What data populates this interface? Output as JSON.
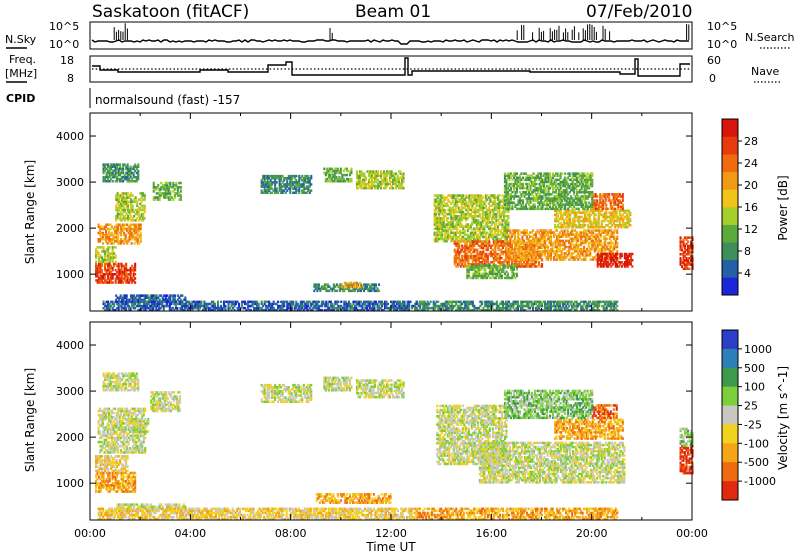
{
  "header": {
    "station": "Saskatoon (fitACF)",
    "beam": "Beam 01",
    "date": "07/Feb/2010"
  },
  "strip": {
    "nsky_label": "N.Sky",
    "nsearch_label": "N.Search",
    "nsky_ticks": [
      "10^5",
      "10^0"
    ],
    "nsearch_ticks": [
      "10^5",
      "10^0"
    ],
    "freq_label": "Freq.",
    "freq_unit": "[MHz]",
    "freq_ticks": [
      "18",
      "8"
    ],
    "nave_label": "Nave",
    "nave_ticks": [
      "60",
      "0"
    ],
    "cpid_label": "CPID",
    "cpid_value": "normalsound (fast) -157"
  },
  "chart_data": [
    {
      "type": "heatmap",
      "name": "power",
      "ylabel": "Slant Range [km]",
      "xlabel": "Time UT",
      "x_ticks": [
        "00:00",
        "04:00",
        "08:00",
        "12:00",
        "16:00",
        "20:00",
        "00:00"
      ],
      "y_ticks": [
        "1000",
        "2000",
        "3000",
        "4000"
      ],
      "ylim": [
        200,
        4500
      ],
      "xlim_hours": [
        0,
        24
      ],
      "colorbar_label": "Power [dB]",
      "colorbar_ticks": [
        "4",
        "8",
        "12",
        "16",
        "20",
        "24",
        "28"
      ],
      "colors": [
        "#1b26d9",
        "#2460a8",
        "#3e8f5c",
        "#5aaa3c",
        "#a6cf2a",
        "#f0c419",
        "#f29a14",
        "#ef6a10",
        "#e83a0c",
        "#d9140b"
      ],
      "regions": [
        {
          "t": [
            0.2,
            1.8
          ],
          "r": [
            800,
            1250
          ],
          "level": 8
        },
        {
          "t": [
            0.2,
            1.0
          ],
          "r": [
            1250,
            1600
          ],
          "level": 4
        },
        {
          "t": [
            0.3,
            2.0
          ],
          "r": [
            1650,
            2100
          ],
          "level": 6
        },
        {
          "t": [
            1.0,
            2.2
          ],
          "r": [
            2150,
            2750
          ],
          "level": 4
        },
        {
          "t": [
            0.5,
            1.9
          ],
          "r": [
            3000,
            3400
          ],
          "level": 2
        },
        {
          "t": [
            2.5,
            3.6
          ],
          "r": [
            2600,
            3000
          ],
          "level": 3
        },
        {
          "t": [
            1.0,
            3.8
          ],
          "r": [
            380,
            560
          ],
          "level": 1
        },
        {
          "t": [
            6.8,
            8.8
          ],
          "r": [
            2750,
            3150
          ],
          "level": 2
        },
        {
          "t": [
            9.3,
            10.4
          ],
          "r": [
            3000,
            3300
          ],
          "level": 3
        },
        {
          "t": [
            10.6,
            12.5
          ],
          "r": [
            2850,
            3250
          ],
          "level": 4
        },
        {
          "t": [
            8.9,
            11.5
          ],
          "r": [
            620,
            780
          ],
          "level": 2
        },
        {
          "t": [
            10.0,
            10.8
          ],
          "r": [
            700,
            820
          ],
          "level": 6
        },
        {
          "t": [
            13.7,
            16.7
          ],
          "r": [
            1700,
            2700
          ],
          "level": 4
        },
        {
          "t": [
            14.5,
            18.0
          ],
          "r": [
            1150,
            1700
          ],
          "level": 7
        },
        {
          "t": [
            15.0,
            17.0
          ],
          "r": [
            900,
            1200
          ],
          "level": 3
        },
        {
          "t": [
            16.6,
            21.0
          ],
          "r": [
            1300,
            1950
          ],
          "level": 6
        },
        {
          "t": [
            18.5,
            21.5
          ],
          "r": [
            2000,
            2400
          ],
          "level": 5
        },
        {
          "t": [
            20.0,
            21.2
          ],
          "r": [
            2400,
            2750
          ],
          "level": 7
        },
        {
          "t": [
            20.2,
            21.6
          ],
          "r": [
            1150,
            1450
          ],
          "level": 9
        },
        {
          "t": [
            16.5,
            20.0
          ],
          "r": [
            2400,
            3200
          ],
          "level": 3
        },
        {
          "t": [
            23.5,
            24.0
          ],
          "r": [
            1100,
            1800
          ],
          "level": 8
        },
        {
          "t": [
            0.5,
            13.0
          ],
          "r": [
            200,
            400
          ],
          "level": 1
        },
        {
          "t": [
            13.0,
            21.0
          ],
          "r": [
            200,
            420
          ],
          "level": 2
        }
      ]
    },
    {
      "type": "heatmap",
      "name": "velocity",
      "ylabel": "Slant Range [km]",
      "xlabel": "Time UT",
      "x_ticks": [
        "00:00",
        "04:00",
        "08:00",
        "12:00",
        "16:00",
        "20:00",
        "00:00"
      ],
      "y_ticks": [
        "1000",
        "2000",
        "3000",
        "4000"
      ],
      "ylim": [
        200,
        4500
      ],
      "xlim_hours": [
        0,
        24
      ],
      "colorbar_label": "Velocity [m s^-1]",
      "colorbar_ticks": [
        "1000",
        "500",
        "100",
        "25",
        "-25",
        "-100",
        "-500",
        "-1000"
      ],
      "colors": [
        "#2a3ec8",
        "#2c7fb8",
        "#3d9a4a",
        "#7ccf3a",
        "#c8c8c0",
        "#f2d21e",
        "#f5a516",
        "#f06a12",
        "#e02a10"
      ],
      "regions": [
        {
          "t": [
            0.2,
            1.8
          ],
          "r": [
            800,
            1250
          ],
          "level": 6
        },
        {
          "t": [
            0.2,
            1.5
          ],
          "r": [
            1250,
            1600
          ],
          "level": 5
        },
        {
          "t": [
            0.3,
            2.2
          ],
          "r": [
            1650,
            2600
          ],
          "level": 4
        },
        {
          "t": [
            1.5,
            2.3
          ],
          "r": [
            2100,
            2400
          ],
          "level": 4
        },
        {
          "t": [
            2.4,
            3.6
          ],
          "r": [
            2550,
            3000
          ],
          "level": 4
        },
        {
          "t": [
            0.5,
            1.9
          ],
          "r": [
            3000,
            3400
          ],
          "level": 4
        },
        {
          "t": [
            1.0,
            3.8
          ],
          "r": [
            380,
            560
          ],
          "level": 4
        },
        {
          "t": [
            6.8,
            8.8
          ],
          "r": [
            2750,
            3150
          ],
          "level": 4
        },
        {
          "t": [
            9.3,
            10.4
          ],
          "r": [
            3000,
            3300
          ],
          "level": 4
        },
        {
          "t": [
            10.6,
            12.5
          ],
          "r": [
            2850,
            3250
          ],
          "level": 4
        },
        {
          "t": [
            9.0,
            12.0
          ],
          "r": [
            560,
            780
          ],
          "level": 6
        },
        {
          "t": [
            13.8,
            16.6
          ],
          "r": [
            1400,
            2700
          ],
          "level": 4
        },
        {
          "t": [
            15.5,
            21.3
          ],
          "r": [
            1000,
            1900
          ],
          "level": 4
        },
        {
          "t": [
            18.5,
            21.2
          ],
          "r": [
            1950,
            2400
          ],
          "level": 6
        },
        {
          "t": [
            20.0,
            21.0
          ],
          "r": [
            2400,
            2700
          ],
          "level": 7
        },
        {
          "t": [
            16.5,
            20.0
          ],
          "r": [
            2400,
            3000
          ],
          "level": 3
        },
        {
          "t": [
            23.5,
            24.0
          ],
          "r": [
            1200,
            1800
          ],
          "level": 8
        },
        {
          "t": [
            23.5,
            24.0
          ],
          "r": [
            1800,
            2200
          ],
          "level": 3
        },
        {
          "t": [
            0.3,
            13.0
          ],
          "r": [
            200,
            450
          ],
          "level": 5
        },
        {
          "t": [
            13.0,
            21.0
          ],
          "r": [
            200,
            450
          ],
          "level": 6
        }
      ]
    }
  ]
}
